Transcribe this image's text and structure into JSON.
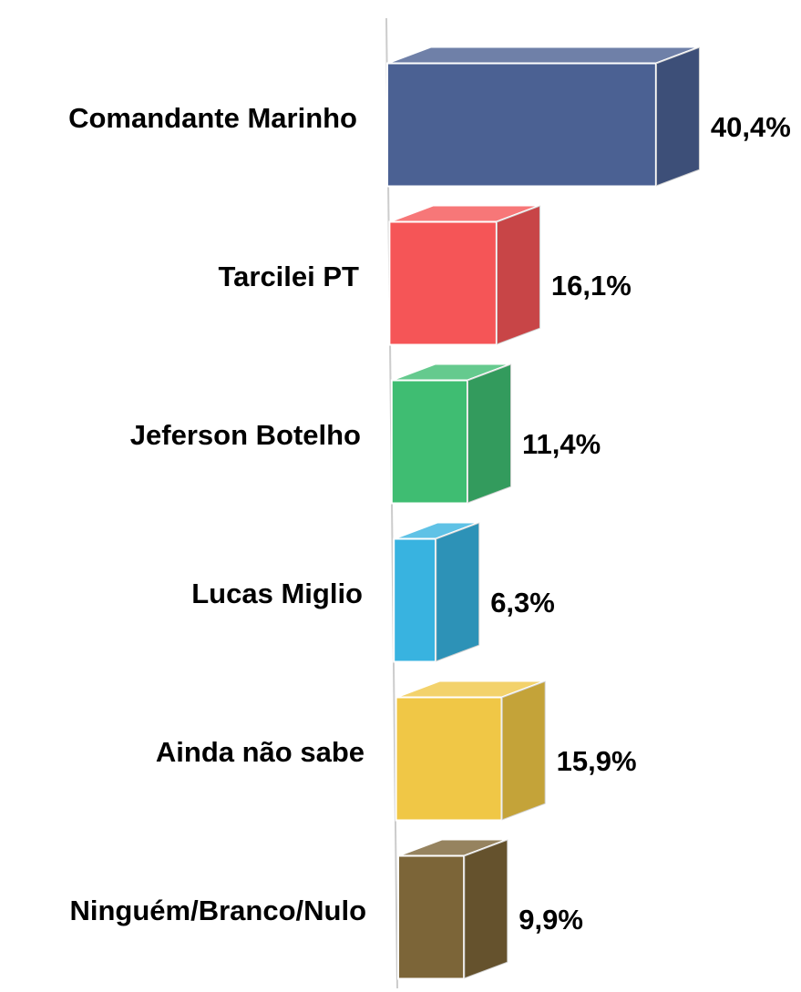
{
  "chart_data": {
    "type": "bar3d_horizontal",
    "categories": [
      "Comandante Marinho",
      "Tarcilei PT",
      "Jeferson Botelho",
      "Lucas Miglio",
      "Ainda não sabe",
      "Ninguém/Branco/Nulo"
    ],
    "values": [
      40.4,
      16.1,
      11.4,
      6.3,
      15.9,
      9.9
    ],
    "value_labels": [
      "40,4%",
      "16,1%",
      "11,4%",
      "6,3%",
      "15,9%",
      "9,9%"
    ],
    "colors": [
      "#4b6193",
      "#f55557",
      "#3fbd72",
      "#38b3e0",
      "#f0c746",
      "#7c6538"
    ]
  }
}
